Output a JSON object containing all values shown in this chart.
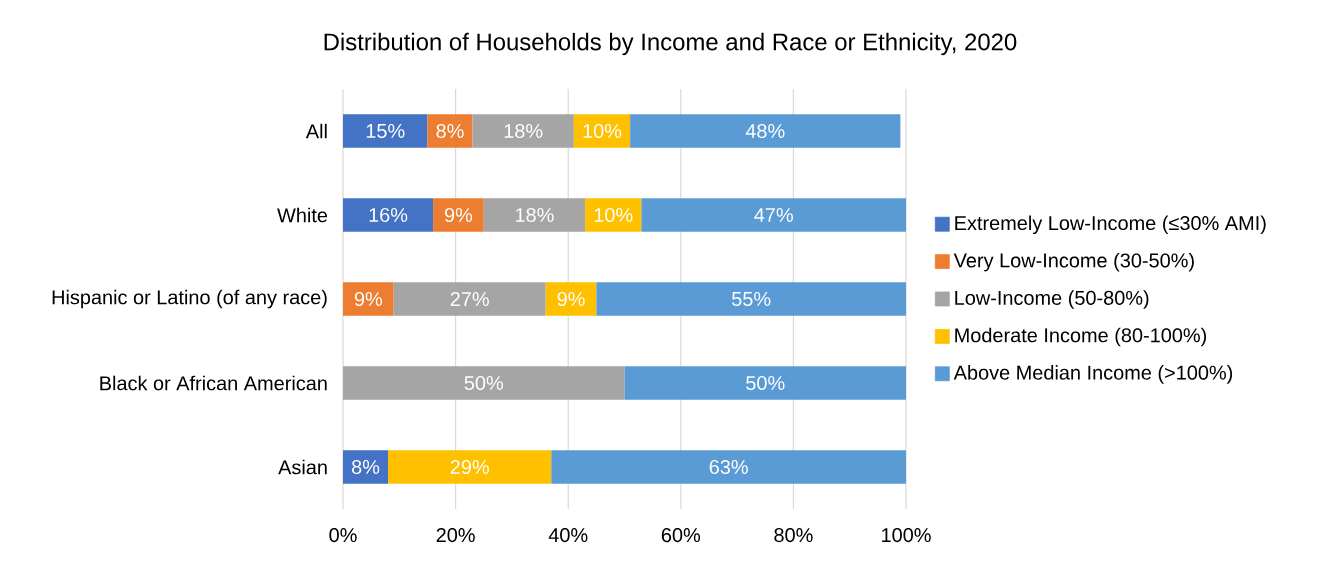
{
  "chart_data": {
    "type": "bar",
    "orientation": "horizontal",
    "stacked": true,
    "title": "Distribution of Households by Income and Race or Ethnicity, 2020",
    "categories": [
      "All",
      "White",
      "Hispanic or Latino (of any race)",
      "Black or African American",
      "Asian"
    ],
    "series": [
      {
        "name": "Extremely Low-Income (≤30% AMI)",
        "color": "#4472c4",
        "values": [
          15,
          16,
          null,
          null,
          8
        ],
        "value_labels": [
          "15%",
          "16%",
          null,
          null,
          "8%"
        ]
      },
      {
        "name": "Very Low-Income (30-50%)",
        "color": "#ed7d31",
        "values": [
          8,
          9,
          9,
          null,
          null
        ],
        "value_labels": [
          "8%",
          "9%",
          "9%",
          null,
          null
        ]
      },
      {
        "name": "Low-Income (50-80%)",
        "color": "#a5a5a5",
        "values": [
          18,
          18,
          27,
          50,
          null
        ],
        "value_labels": [
          "18%",
          "18%",
          "27%",
          "50%",
          null
        ]
      },
      {
        "name": "Moderate Income (80-100%)",
        "color": "#ffc000",
        "values": [
          10,
          10,
          9,
          null,
          29
        ],
        "value_labels": [
          "10%",
          "10%",
          "9%",
          null,
          "29%"
        ]
      },
      {
        "name": "Above Median Income (>100%)",
        "color": "#5b9bd5",
        "values": [
          48,
          47,
          55,
          50,
          63
        ],
        "value_labels": [
          "48%",
          "47%",
          "55%",
          "50%",
          "63%"
        ]
      }
    ],
    "xlim": [
      0,
      100
    ],
    "xticks": [
      {
        "value": 0,
        "label": "0%"
      },
      {
        "value": 20,
        "label": "20%"
      },
      {
        "value": 40,
        "label": "40%"
      },
      {
        "value": 60,
        "label": "60%"
      },
      {
        "value": 80,
        "label": "80%"
      },
      {
        "value": 100,
        "label": "100%"
      }
    ],
    "grid": "x",
    "legend": "right"
  }
}
